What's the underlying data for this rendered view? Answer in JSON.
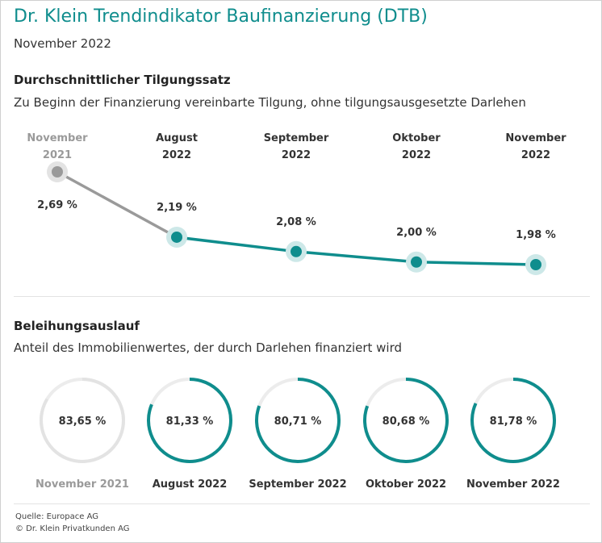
{
  "header": {
    "title": "Dr. Klein Trendindikator Baufinanzierung (DTB)",
    "date": "November 2022"
  },
  "section1": {
    "heading": "Durchschnittlicher Tilgungssatz",
    "description": "Zu Beginn der Finanzierung vereinbarte Tilgung, ohne tilgungsausgesetzte Darlehen"
  },
  "section2": {
    "heading": "Beleihungsauslauf",
    "description": "Anteil des Immobilienwertes, der durch Darlehen finanziert wird"
  },
  "footer": {
    "source": "Quelle: Europace AG",
    "copyright": "© Dr. Klein Privatkunden AG"
  },
  "colors": {
    "accent": "#0f8d8d",
    "accent_light": "#cde8e8",
    "muted": "#9a9a9a",
    "muted_light": "#e3e3e3",
    "ring_track": "#ececec"
  },
  "chart_data": [
    {
      "type": "line",
      "categories": [
        [
          "November",
          "2021"
        ],
        [
          "August",
          "2022"
        ],
        [
          "September",
          "2022"
        ],
        [
          "Oktober",
          "2022"
        ],
        [
          "November",
          "2022"
        ]
      ],
      "values": [
        2.69,
        2.19,
        2.08,
        2.0,
        1.98
      ],
      "value_labels": [
        "2,69 %",
        "2,19 %",
        "2,08 %",
        "2,00 %",
        "1,98 %"
      ],
      "highlight_first_muted": true,
      "ylim": [
        1.98,
        2.69
      ],
      "grid": false
    },
    {
      "type": "pie",
      "style": "ring-gauge",
      "categories": [
        "November 2021",
        "August 2022",
        "September 2022",
        "Oktober 2022",
        "November 2022"
      ],
      "values": [
        83.65,
        81.33,
        80.71,
        80.68,
        81.78
      ],
      "value_labels": [
        "83,65 %",
        "81,33 %",
        "80,71 %",
        "80,68 %",
        "81,78 %"
      ],
      "max": 100,
      "highlight_first_muted": true
    }
  ]
}
